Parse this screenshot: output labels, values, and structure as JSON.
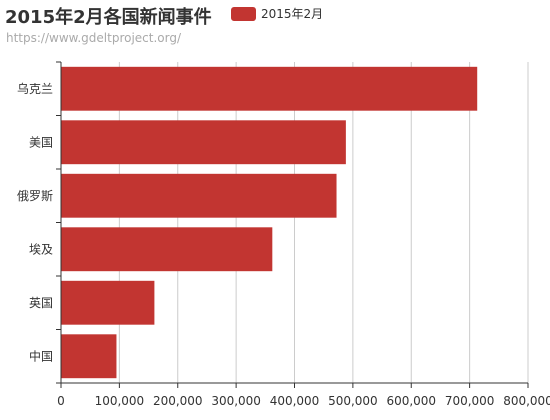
{
  "chart_data": {
    "type": "bar",
    "orientation": "horizontal",
    "title": "2015年2月各国新闻事件",
    "subtitle": "https://www.gdeltproject.org/",
    "categories": [
      "中国",
      "英国",
      "埃及",
      "俄罗斯",
      "美国",
      "乌克兰"
    ],
    "series": [
      {
        "name": "2015年2月",
        "values": [
          95000,
          160000,
          362000,
          472000,
          488000,
          713000
        ]
      }
    ],
    "xlim": [
      0,
      800000
    ],
    "xticks": [
      0,
      100000,
      200000,
      300000,
      400000,
      500000,
      600000,
      700000,
      800000
    ],
    "xtick_labels": [
      "0",
      "100,000",
      "200,000",
      "300,000",
      "400,000",
      "500,000",
      "600,000",
      "700,000",
      "800,000"
    ],
    "grid": true,
    "legend": "top",
    "bar_color": "#c23531"
  }
}
